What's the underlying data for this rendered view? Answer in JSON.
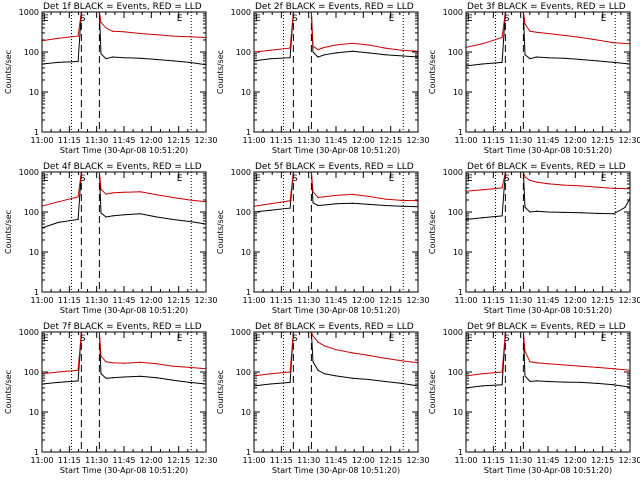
{
  "figure": {
    "detector_colors": {
      "events": "#000000",
      "lld": "#cc0000"
    }
  },
  "chart_data": [
    {
      "type": "line",
      "title": "Det 1f BLACK = Events, RED = LLD",
      "xlabel": "Start Time (30-Apr-08 10:51:20)",
      "ylabel": "Counts/sec",
      "yscale": "log",
      "ylim": [
        1,
        1000
      ],
      "x_ticks": [
        "11:00",
        "11:15",
        "11:30",
        "11:45",
        "12:00",
        "12:15",
        "12:30"
      ],
      "y_ticks": [
        "1",
        "10",
        "100",
        "1000"
      ],
      "xlim_minutes": [
        0,
        100
      ],
      "dashed_markers": [
        24,
        35
      ],
      "dotted_markers": [
        18,
        91
      ],
      "annotations": [
        {
          "label": "E",
          "x": 0
        },
        {
          "label": "S",
          "x": 25
        },
        {
          "label": "E",
          "x": 84
        }
      ],
      "series": [
        {
          "name": "Events",
          "color": "#000000",
          "x": [
            0,
            10,
            22,
            24,
            27,
            35,
            36,
            39,
            43,
            50,
            60,
            70,
            80,
            90,
            100
          ],
          "y": [
            50,
            55,
            58,
            1000,
            1000,
            1000,
            90,
            68,
            75,
            72,
            70,
            65,
            60,
            55,
            48
          ]
        },
        {
          "name": "LLD",
          "color": "#cc0000",
          "x": [
            0,
            10,
            22,
            24,
            27,
            35,
            36,
            39,
            43,
            50,
            60,
            70,
            80,
            90,
            100
          ],
          "y": [
            190,
            220,
            250,
            1000,
            1000,
            1000,
            550,
            400,
            330,
            320,
            290,
            270,
            250,
            240,
            230
          ]
        }
      ]
    },
    {
      "type": "line",
      "title": "Det 2f BLACK = Events, RED = LLD",
      "xlabel": "Start Time (30-Apr-08 10:51:20)",
      "ylabel": "Counts/sec",
      "yscale": "log",
      "ylim": [
        1,
        1000
      ],
      "x_ticks": [
        "11:00",
        "11:15",
        "11:30",
        "11:45",
        "12:00",
        "12:15",
        "12:30"
      ],
      "y_ticks": [
        "1",
        "10",
        "100",
        "1000"
      ],
      "xlim_minutes": [
        0,
        100
      ],
      "dashed_markers": [
        24,
        35
      ],
      "dotted_markers": [
        18,
        91
      ],
      "annotations": [
        {
          "label": "E",
          "x": 0
        },
        {
          "label": "S",
          "x": 25
        },
        {
          "label": "E",
          "x": 84
        }
      ],
      "series": [
        {
          "name": "Events",
          "color": "#000000",
          "x": [
            0,
            10,
            22,
            24,
            27,
            35,
            36,
            39,
            43,
            50,
            60,
            70,
            80,
            90,
            100
          ],
          "y": [
            60,
            68,
            72,
            1000,
            1000,
            1000,
            100,
            75,
            85,
            95,
            105,
            95,
            85,
            80,
            75
          ]
        },
        {
          "name": "LLD",
          "color": "#cc0000",
          "x": [
            0,
            10,
            22,
            24,
            27,
            35,
            36,
            39,
            43,
            50,
            60,
            70,
            80,
            90,
            100
          ],
          "y": [
            100,
            110,
            125,
            1000,
            1000,
            1000,
            140,
            115,
            130,
            150,
            165,
            150,
            125,
            110,
            105
          ]
        }
      ]
    },
    {
      "type": "line",
      "title": "Det 3f BLACK = Events, RED = LLD",
      "xlabel": "Start Time (30-Apr-08 10:51:20)",
      "ylabel": "Counts/sec",
      "yscale": "log",
      "ylim": [
        1,
        1000
      ],
      "x_ticks": [
        "11:00",
        "11:15",
        "11:30",
        "11:45",
        "12:00",
        "12:15",
        "12:30"
      ],
      "y_ticks": [
        "1",
        "10",
        "100",
        "1000"
      ],
      "xlim_minutes": [
        0,
        100
      ],
      "dashed_markers": [
        24,
        35
      ],
      "dotted_markers": [
        18,
        91
      ],
      "annotations": [
        {
          "label": "E",
          "x": 0
        },
        {
          "label": "S",
          "x": 25
        },
        {
          "label": "E",
          "x": 84
        }
      ],
      "series": [
        {
          "name": "Events",
          "color": "#000000",
          "x": [
            0,
            10,
            22,
            24,
            27,
            35,
            36,
            39,
            43,
            50,
            60,
            70,
            80,
            90,
            100
          ],
          "y": [
            45,
            50,
            55,
            1000,
            1000,
            1000,
            85,
            68,
            75,
            72,
            70,
            65,
            60,
            55,
            50
          ]
        },
        {
          "name": "LLD",
          "color": "#cc0000",
          "x": [
            0,
            10,
            22,
            24,
            27,
            35,
            36,
            39,
            43,
            50,
            60,
            70,
            80,
            90,
            100
          ],
          "y": [
            130,
            160,
            230,
            1000,
            1000,
            1000,
            500,
            330,
            310,
            290,
            260,
            230,
            200,
            170,
            160
          ]
        }
      ]
    },
    {
      "type": "line",
      "title": "Det 4f BLACK = Events, RED = LLD",
      "xlabel": "Start Time (30-Apr-08 10:51:20)",
      "ylabel": "Counts/sec",
      "yscale": "log",
      "ylim": [
        1,
        1000
      ],
      "x_ticks": [
        "11:00",
        "11:15",
        "11:30",
        "11:45",
        "12:00",
        "12:15",
        "12:30"
      ],
      "y_ticks": [
        "1",
        "10",
        "100",
        "1000"
      ],
      "xlim_minutes": [
        0,
        100
      ],
      "dashed_markers": [
        24,
        35
      ],
      "dotted_markers": [
        18,
        91
      ],
      "annotations": [
        {
          "label": "E",
          "x": 0
        },
        {
          "label": "S",
          "x": 25
        },
        {
          "label": "E",
          "x": 84
        }
      ],
      "series": [
        {
          "name": "Events",
          "color": "#000000",
          "x": [
            0,
            10,
            22,
            24,
            27,
            35,
            36,
            39,
            43,
            50,
            60,
            70,
            80,
            90,
            100
          ],
          "y": [
            40,
            55,
            65,
            1000,
            1000,
            1000,
            95,
            75,
            80,
            85,
            90,
            75,
            65,
            58,
            50
          ]
        },
        {
          "name": "LLD",
          "color": "#cc0000",
          "x": [
            0,
            10,
            22,
            24,
            27,
            35,
            36,
            39,
            43,
            50,
            60,
            70,
            80,
            90,
            100
          ],
          "y": [
            140,
            180,
            240,
            1000,
            1000,
            1000,
            370,
            280,
            300,
            310,
            320,
            270,
            230,
            200,
            180
          ]
        }
      ]
    },
    {
      "type": "line",
      "title": "Det 5f BLACK = Events, RED = LLD",
      "xlabel": "Start Time (30-Apr-08 10:51:20)",
      "ylabel": "Counts/sec",
      "yscale": "log",
      "ylim": [
        1,
        1000
      ],
      "x_ticks": [
        "11:00",
        "11:15",
        "11:30",
        "11:45",
        "12:00",
        "12:15",
        "12:30"
      ],
      "y_ticks": [
        "1",
        "10",
        "100",
        "1000"
      ],
      "xlim_minutes": [
        0,
        100
      ],
      "dashed_markers": [
        24,
        35
      ],
      "dotted_markers": [
        18,
        91
      ],
      "annotations": [
        {
          "label": "E",
          "x": 0
        },
        {
          "label": "S",
          "x": 25
        },
        {
          "label": "E",
          "x": 84
        }
      ],
      "series": [
        {
          "name": "Events",
          "color": "#000000",
          "x": [
            0,
            10,
            22,
            24,
            27,
            35,
            36,
            39,
            43,
            50,
            60,
            70,
            80,
            90,
            100
          ],
          "y": [
            100,
            110,
            125,
            1000,
            1000,
            1000,
            170,
            145,
            150,
            160,
            165,
            155,
            145,
            140,
            135
          ]
        },
        {
          "name": "LLD",
          "color": "#cc0000",
          "x": [
            0,
            10,
            22,
            24,
            27,
            35,
            36,
            39,
            43,
            50,
            60,
            70,
            80,
            90,
            100
          ],
          "y": [
            140,
            160,
            190,
            1000,
            1000,
            1000,
            320,
            230,
            240,
            260,
            275,
            245,
            210,
            195,
            190
          ]
        }
      ]
    },
    {
      "type": "line",
      "title": "Det 6f BLACK = Events, RED = LLD",
      "xlabel": "Start Time (30-Apr-08 10:51:20)",
      "ylabel": "Counts/sec",
      "yscale": "log",
      "ylim": [
        1,
        1000
      ],
      "x_ticks": [
        "11:00",
        "11:15",
        "11:30",
        "11:45",
        "12:00",
        "12:15",
        "12:30"
      ],
      "y_ticks": [
        "1",
        "10",
        "100",
        "1000"
      ],
      "xlim_minutes": [
        0,
        100
      ],
      "dashed_markers": [
        24,
        35
      ],
      "dotted_markers": [
        18,
        91
      ],
      "annotations": [
        {
          "label": "E",
          "x": 0
        },
        {
          "label": "S",
          "x": 25
        },
        {
          "label": "E",
          "x": 84
        }
      ],
      "series": [
        {
          "name": "Events",
          "color": "#000000",
          "x": [
            0,
            10,
            22,
            24,
            27,
            35,
            36,
            39,
            43,
            50,
            60,
            70,
            80,
            90,
            97,
            100
          ],
          "y": [
            65,
            72,
            80,
            1000,
            1000,
            1000,
            130,
            100,
            105,
            100,
            98,
            96,
            92,
            90,
            130,
            220
          ]
        },
        {
          "name": "LLD",
          "color": "#cc0000",
          "x": [
            0,
            10,
            22,
            24,
            27,
            35,
            36,
            39,
            43,
            50,
            60,
            70,
            80,
            90,
            100
          ],
          "y": [
            330,
            360,
            400,
            1000,
            1000,
            1000,
            750,
            620,
            560,
            510,
            470,
            450,
            420,
            390,
            380
          ]
        }
      ]
    },
    {
      "type": "line",
      "title": "Det 7f BLACK = Events, RED = LLD",
      "xlabel": "Start Time (30-Apr-08 10:51:20)",
      "ylabel": "Counts/sec",
      "yscale": "log",
      "ylim": [
        1,
        1000
      ],
      "x_ticks": [
        "11:00",
        "11:15",
        "11:30",
        "11:45",
        "12:00",
        "12:15",
        "12:30"
      ],
      "y_ticks": [
        "1",
        "10",
        "100",
        "1000"
      ],
      "xlim_minutes": [
        0,
        100
      ],
      "dashed_markers": [
        24,
        35
      ],
      "dotted_markers": [
        18,
        91
      ],
      "annotations": [
        {
          "label": "E",
          "x": 0
        },
        {
          "label": "S",
          "x": 25
        },
        {
          "label": "E",
          "x": 84
        }
      ],
      "series": [
        {
          "name": "Events",
          "color": "#000000",
          "x": [
            0,
            10,
            22,
            24,
            27,
            35,
            36,
            39,
            43,
            50,
            60,
            70,
            80,
            90,
            100
          ],
          "y": [
            50,
            55,
            60,
            1000,
            1000,
            1000,
            90,
            70,
            72,
            75,
            78,
            72,
            62,
            55,
            50
          ]
        },
        {
          "name": "LLD",
          "color": "#cc0000",
          "x": [
            0,
            10,
            22,
            24,
            27,
            35,
            36,
            39,
            43,
            50,
            60,
            70,
            80,
            90,
            100
          ],
          "y": [
            90,
            100,
            110,
            1000,
            1000,
            1000,
            250,
            180,
            170,
            165,
            175,
            160,
            140,
            130,
            120
          ]
        }
      ]
    },
    {
      "type": "line",
      "title": "Det 8f BLACK = Events, RED = LLD",
      "xlabel": "Start Time (30-Apr-08 10:51:20)",
      "ylabel": "Counts/sec",
      "yscale": "log",
      "ylim": [
        1,
        1000
      ],
      "x_ticks": [
        "11:00",
        "11:15",
        "11:30",
        "11:45",
        "12:00",
        "12:15",
        "12:30"
      ],
      "y_ticks": [
        "1",
        "10",
        "100",
        "1000"
      ],
      "xlim_minutes": [
        0,
        100
      ],
      "dashed_markers": [
        24,
        35
      ],
      "dotted_markers": [
        18,
        91
      ],
      "annotations": [
        {
          "label": "E",
          "x": 0
        },
        {
          "label": "S",
          "x": 25
        },
        {
          "label": "E",
          "x": 84
        }
      ],
      "series": [
        {
          "name": "Events",
          "color": "#000000",
          "x": [
            0,
            10,
            22,
            24,
            27,
            35,
            36,
            39,
            43,
            50,
            60,
            70,
            80,
            90,
            100
          ],
          "y": [
            45,
            50,
            55,
            1000,
            1000,
            1000,
            180,
            110,
            90,
            80,
            70,
            65,
            58,
            52,
            45
          ]
        },
        {
          "name": "LLD",
          "color": "#cc0000",
          "x": [
            0,
            10,
            22,
            24,
            27,
            35,
            36,
            39,
            43,
            50,
            60,
            70,
            80,
            90,
            100
          ],
          "y": [
            80,
            90,
            100,
            1000,
            1000,
            1000,
            800,
            560,
            450,
            360,
            300,
            260,
            220,
            190,
            170
          ]
        }
      ]
    },
    {
      "type": "line",
      "title": "Det 9f BLACK = Events, RED = LLD",
      "xlabel": "Start Time (30-Apr-08 10:51:20)",
      "ylabel": "Counts/sec",
      "yscale": "log",
      "ylim": [
        1,
        1000
      ],
      "x_ticks": [
        "11:00",
        "11:15",
        "11:30",
        "11:45",
        "12:00",
        "12:15",
        "12:30"
      ],
      "y_ticks": [
        "1",
        "10",
        "100",
        "1000"
      ],
      "xlim_minutes": [
        0,
        100
      ],
      "dashed_markers": [
        24,
        35
      ],
      "dotted_markers": [
        18,
        91
      ],
      "annotations": [
        {
          "label": "E",
          "x": 0
        },
        {
          "label": "S",
          "x": 25
        },
        {
          "label": "E",
          "x": 84
        }
      ],
      "series": [
        {
          "name": "Events",
          "color": "#000000",
          "x": [
            0,
            10,
            22,
            24,
            27,
            35,
            36,
            39,
            43,
            50,
            60,
            70,
            80,
            90,
            100
          ],
          "y": [
            40,
            45,
            48,
            1000,
            1000,
            1000,
            80,
            58,
            60,
            58,
            56,
            55,
            52,
            48,
            42
          ]
        },
        {
          "name": "LLD",
          "color": "#cc0000",
          "x": [
            0,
            10,
            22,
            24,
            27,
            35,
            36,
            39,
            43,
            50,
            60,
            70,
            80,
            90,
            100
          ],
          "y": [
            80,
            90,
            100,
            1000,
            1000,
            1000,
            330,
            180,
            170,
            160,
            150,
            140,
            130,
            120,
            110
          ]
        }
      ]
    }
  ]
}
